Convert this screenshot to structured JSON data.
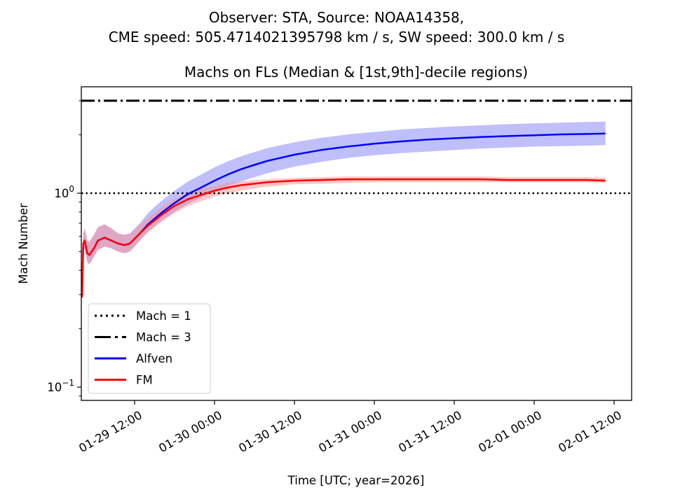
{
  "chart_data": {
    "type": "line",
    "suptitle_line1": "Observer: STA, Source: NOAA14358,",
    "suptitle_line2": "CME speed: 505.4714021395798 km / s, SW speed: 300.0 km / s",
    "title": "Machs on FLs (Median & [1st,9th]-decile regions)",
    "xlabel": "Time [UTC; year=2026]",
    "ylabel": "Mach Number",
    "yscale": "log",
    "ylim": [
      0.088,
      3.45
    ],
    "x_unit": "hours since 2026-01-29 12:00 UTC",
    "xlim": [
      -8.0,
      74.7
    ],
    "x_ticks": [
      {
        "value": 0,
        "label": "01-29 12:00"
      },
      {
        "value": 12,
        "label": "01-30 00:00"
      },
      {
        "value": 24,
        "label": "01-30 12:00"
      },
      {
        "value": 36,
        "label": "01-31 00:00"
      },
      {
        "value": 48,
        "label": "01-31 12:00"
      },
      {
        "value": 60,
        "label": "02-01 00:00"
      },
      {
        "value": 72,
        "label": "02-01 12:00"
      }
    ],
    "y_ticks": [
      {
        "value": 0.1,
        "base": "10",
        "exp": "−1"
      },
      {
        "value": 1,
        "base": "10",
        "exp": "0"
      }
    ],
    "reference_lines": [
      {
        "name": "Mach = 1",
        "value": 1,
        "style": "dotted",
        "color": "#000000"
      },
      {
        "name": "Mach = 3",
        "value": 3,
        "style": "dashdot",
        "color": "#000000"
      }
    ],
    "series": [
      {
        "name": "Alfven",
        "color": "#0000ff",
        "band_color": "#8080f8",
        "x": [
          -7.9,
          -7.7,
          -7.5,
          -7.1,
          -6.8,
          -6.1,
          -5.5,
          -4.5,
          -3.5,
          -2.5,
          -1.5,
          -0.7,
          0.8,
          2,
          4,
          6,
          8,
          10,
          12,
          14,
          16,
          18,
          20,
          24,
          28,
          32,
          36,
          40,
          44,
          48,
          52,
          56,
          60,
          64,
          68,
          70.7
        ],
        "median": [
          0.29,
          0.55,
          0.57,
          0.49,
          0.48,
          0.52,
          0.57,
          0.59,
          0.57,
          0.55,
          0.54,
          0.55,
          0.62,
          0.69,
          0.79,
          0.89,
          0.99,
          1.07,
          1.16,
          1.25,
          1.33,
          1.4,
          1.47,
          1.58,
          1.67,
          1.74,
          1.8,
          1.85,
          1.89,
          1.92,
          1.95,
          1.97,
          1.99,
          2.01,
          2.02,
          2.03
        ],
        "decile_1": [
          0.28,
          0.5,
          0.52,
          0.44,
          0.43,
          0.47,
          0.51,
          0.53,
          0.52,
          0.5,
          0.49,
          0.5,
          0.57,
          0.63,
          0.72,
          0.8,
          0.88,
          0.95,
          1.02,
          1.09,
          1.15,
          1.21,
          1.27,
          1.37,
          1.45,
          1.52,
          1.57,
          1.61,
          1.64,
          1.67,
          1.7,
          1.72,
          1.74,
          1.75,
          1.76,
          1.77
        ],
        "decile_9": [
          0.31,
          0.62,
          0.66,
          0.57,
          0.56,
          0.61,
          0.67,
          0.69,
          0.66,
          0.62,
          0.61,
          0.62,
          0.7,
          0.79,
          0.91,
          1.03,
          1.15,
          1.25,
          1.36,
          1.46,
          1.55,
          1.63,
          1.71,
          1.83,
          1.93,
          2.01,
          2.07,
          2.13,
          2.17,
          2.21,
          2.24,
          2.27,
          2.29,
          2.31,
          2.33,
          2.34
        ]
      },
      {
        "name": "FM",
        "color": "#ff0000",
        "band_color": "#ff9090",
        "x": [
          -7.9,
          -7.7,
          -7.5,
          -7.1,
          -6.8,
          -6.1,
          -5.5,
          -4.5,
          -3.5,
          -2.5,
          -1.5,
          -0.7,
          0.8,
          2,
          4,
          6,
          8,
          10,
          12,
          14,
          16,
          18,
          20,
          24,
          28,
          32,
          36,
          40,
          44,
          48,
          52,
          56,
          60,
          64,
          68,
          70.7
        ],
        "median": [
          0.29,
          0.55,
          0.57,
          0.49,
          0.48,
          0.52,
          0.57,
          0.59,
          0.57,
          0.55,
          0.54,
          0.55,
          0.62,
          0.68,
          0.77,
          0.86,
          0.93,
          0.98,
          1.03,
          1.07,
          1.1,
          1.12,
          1.14,
          1.16,
          1.17,
          1.18,
          1.18,
          1.18,
          1.18,
          1.18,
          1.18,
          1.17,
          1.17,
          1.17,
          1.17,
          1.16
        ],
        "decile_1": [
          0.28,
          0.5,
          0.52,
          0.44,
          0.43,
          0.47,
          0.51,
          0.53,
          0.52,
          0.5,
          0.49,
          0.5,
          0.57,
          0.63,
          0.71,
          0.79,
          0.86,
          0.91,
          0.96,
          1.0,
          1.03,
          1.06,
          1.08,
          1.11,
          1.12,
          1.13,
          1.14,
          1.14,
          1.14,
          1.14,
          1.14,
          1.14,
          1.14,
          1.14,
          1.14,
          1.13
        ],
        "decile_9": [
          0.31,
          0.62,
          0.66,
          0.57,
          0.56,
          0.61,
          0.67,
          0.69,
          0.66,
          0.62,
          0.61,
          0.62,
          0.69,
          0.75,
          0.84,
          0.93,
          1.0,
          1.05,
          1.09,
          1.13,
          1.15,
          1.17,
          1.18,
          1.2,
          1.21,
          1.22,
          1.22,
          1.22,
          1.22,
          1.22,
          1.22,
          1.21,
          1.21,
          1.21,
          1.21,
          1.2
        ]
      }
    ],
    "legend": {
      "position": "lower-left",
      "entries": [
        {
          "label": "Mach = 1",
          "style": "dotted",
          "color": "#000000"
        },
        {
          "label": "Mach = 3",
          "style": "dashdot",
          "color": "#000000"
        },
        {
          "label": "Alfven",
          "style": "solid",
          "color": "#0000ff"
        },
        {
          "label": "FM",
          "style": "solid",
          "color": "#ff0000"
        }
      ]
    },
    "grid": false
  }
}
